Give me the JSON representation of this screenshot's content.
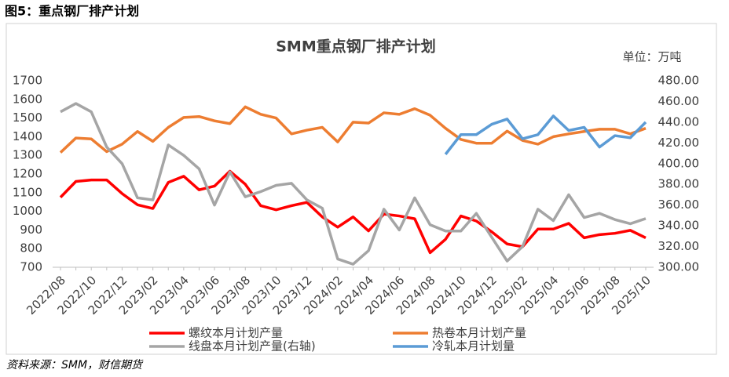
{
  "header": "图5：重点钢厂排产计划",
  "source": "资料来源：SMM，财信期货",
  "chart_data": {
    "type": "line",
    "title": "SMM重点钢厂排产计划",
    "unit_label": "单位：万吨",
    "categories": [
      "2022/08",
      null,
      "2022/10",
      null,
      "2022/12",
      null,
      "2023/02",
      null,
      "2023/04",
      null,
      "2023/06",
      null,
      "2023/08",
      null,
      "2023/10",
      null,
      "2023/12",
      null,
      "2024/02",
      null,
      "2024/04",
      null,
      "2024/06",
      null,
      "2024/08",
      null,
      "2024/10",
      null,
      "2024/12",
      null,
      "2025/02",
      null,
      "2025/04",
      null,
      "2025/06",
      null,
      "2025/08",
      null,
      "2025/10"
    ],
    "ylim": [
      700,
      1700
    ],
    "yticks": [
      700,
      800,
      900,
      1000,
      1100,
      1200,
      1300,
      1400,
      1500,
      1600,
      1700
    ],
    "y2lim": [
      300,
      480
    ],
    "y2ticks": [
      {
        "value": 300,
        "label": "300.00"
      },
      {
        "value": 320,
        "label": "320.00"
      },
      {
        "value": 340,
        "label": "340.00"
      },
      {
        "value": 360,
        "label": "360.00"
      },
      {
        "value": 380,
        "label": "380.00"
      },
      {
        "value": 400,
        "label": "400.00"
      },
      {
        "value": 420,
        "label": "420.00"
      },
      {
        "value": 440,
        "label": "440.00"
      },
      {
        "value": 460,
        "label": "460.00"
      },
      {
        "value": 480,
        "label": "480.00"
      }
    ],
    "series": [
      {
        "name": "螺纹本月计划产量",
        "color": "#ff0000",
        "values": [
          1075,
          1160,
          1168,
          1168,
          1095,
          1035,
          1015,
          1155,
          1188,
          1115,
          1135,
          1215,
          1145,
          1030,
          1008,
          1030,
          1048,
          970,
          915,
          970,
          895,
          985,
          975,
          960,
          778,
          850,
          975,
          948,
          890,
          825,
          810,
          905,
          905,
          935,
          858,
          875,
          882,
          898,
          858
        ]
      },
      {
        "name": "热卷本月计划产量",
        "color": "#ed7d31",
        "values": [
          1315,
          1393,
          1388,
          1320,
          1360,
          1428,
          1375,
          1450,
          1503,
          1508,
          1485,
          1470,
          1560,
          1520,
          1500,
          1415,
          1435,
          1450,
          1372,
          1478,
          1473,
          1528,
          1520,
          1550,
          1515,
          1445,
          1385,
          1365,
          1365,
          1430,
          1380,
          1360,
          1400,
          1415,
          1428,
          1440,
          1440,
          1415,
          1445
        ]
      },
      {
        "name": "线盘本月计划产量(右轴)",
        "color": "#a5a5a5",
        "axis": "y2",
        "values": [
          450,
          458,
          450,
          416,
          400,
          367,
          365,
          418,
          408,
          395,
          360,
          392,
          368,
          373,
          379,
          381,
          365,
          357,
          308,
          303,
          316,
          356,
          336,
          367,
          341,
          335,
          335,
          352,
          329,
          306,
          320,
          356,
          345,
          370,
          348,
          352,
          346,
          342,
          347
        ]
      },
      {
        "name": "冷轧本月计划量",
        "color": "#5b9bd5",
        "axis": "y2",
        "values": [
          null,
          null,
          null,
          null,
          null,
          null,
          null,
          null,
          null,
          null,
          null,
          null,
          null,
          null,
          null,
          null,
          null,
          null,
          null,
          null,
          null,
          null,
          null,
          null,
          null,
          409,
          428,
          428,
          438,
          443,
          424,
          428,
          446,
          432,
          435,
          416,
          427,
          425,
          440
        ]
      }
    ]
  }
}
